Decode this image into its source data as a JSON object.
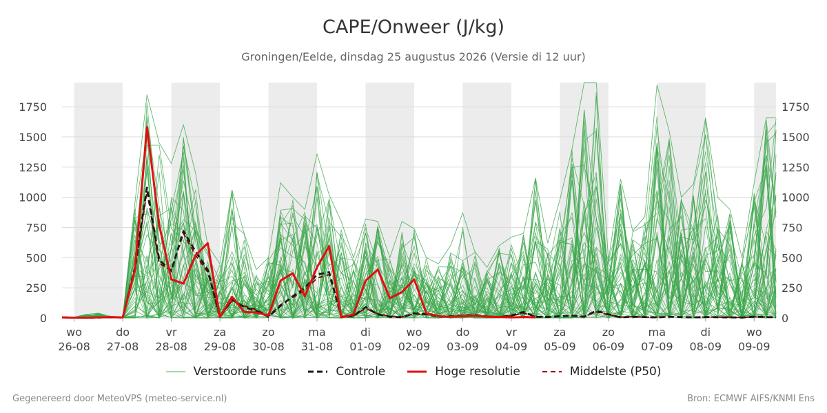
{
  "header": {
    "title": "CAPE/Onweer (J/kg)",
    "subtitle": "Groningen/Eelde, dinsdag 25 augustus 2026 (Versie di 12 uur)"
  },
  "footer": {
    "left": "Gegenereerd door MeteoVPS (meteo-service.nl)",
    "right": "Bron: ECMWF AIFS/KNMI Ens"
  },
  "legend": [
    {
      "label": "Verstoorde runs",
      "color": "#4caf50",
      "style": "thin-solid"
    },
    {
      "label": "Controle",
      "color": "#1a1a1a",
      "style": "dashed"
    },
    {
      "label": "Hoge resolutie",
      "color": "#e01010",
      "style": "thick-solid"
    },
    {
      "label": "Middelste (P50)",
      "color": "#8b0000",
      "style": "dashed"
    }
  ],
  "chart_data": {
    "type": "line",
    "title": "CAPE/Onweer (J/kg)",
    "subtitle": "Groningen/Eelde, dinsdag 25 augustus 2026 (Versie di 12 uur)",
    "x_unit": "days since 26-08 00:00",
    "xlim": [
      -0.25,
      14.45
    ],
    "ylim": [
      0,
      1950
    ],
    "y_ticks": [
      0,
      250,
      500,
      750,
      1000,
      1250,
      1500,
      1750
    ],
    "grid": true,
    "legend_position": "bottom",
    "x_tick_labels": [
      {
        "day": "wo",
        "date": "26-08",
        "x": 0
      },
      {
        "day": "do",
        "date": "27-08",
        "x": 1
      },
      {
        "day": "vr",
        "date": "28-08",
        "x": 2
      },
      {
        "day": "za",
        "date": "29-08",
        "x": 3
      },
      {
        "day": "zo",
        "date": "30-08",
        "x": 4
      },
      {
        "day": "ma",
        "date": "31-08",
        "x": 5
      },
      {
        "day": "di",
        "date": "01-09",
        "x": 6
      },
      {
        "day": "wo",
        "date": "02-09",
        "x": 7
      },
      {
        "day": "do",
        "date": "03-09",
        "x": 8
      },
      {
        "day": "vr",
        "date": "04-09",
        "x": 9
      },
      {
        "day": "za",
        "date": "05-09",
        "x": 10
      },
      {
        "day": "zo",
        "date": "06-09",
        "x": 11
      },
      {
        "day": "ma",
        "date": "07-09",
        "x": 12
      },
      {
        "day": "di",
        "date": "08-09",
        "x": 13
      },
      {
        "day": "wo",
        "date": "09-09",
        "x": 14
      }
    ],
    "shaded_bands": [
      [
        0,
        1
      ],
      [
        2,
        3
      ],
      [
        4,
        5
      ],
      [
        6,
        7
      ],
      [
        8,
        9
      ],
      [
        10,
        11
      ],
      [
        12,
        13
      ],
      [
        14,
        14.45
      ]
    ],
    "series": [
      {
        "name": "Hoge resolutie",
        "color": "#e01010",
        "x": [
          -0.25,
          0,
          0.25,
          0.5,
          0.75,
          1,
          1.25,
          1.5,
          1.75,
          2,
          2.25,
          2.5,
          2.75,
          3,
          3.25,
          3.5,
          3.75,
          4,
          4.25,
          4.5,
          4.75,
          5,
          5.25,
          5.5,
          5.75,
          6,
          6.25,
          6.5,
          6.75,
          7,
          7.25,
          7.5,
          7.75,
          8,
          8.25,
          8.5,
          8.75,
          9,
          9.25,
          9.5
        ],
        "y": [
          5,
          3,
          2,
          5,
          8,
          4,
          400,
          1580,
          770,
          320,
          285,
          520,
          620,
          8,
          175,
          50,
          45,
          20,
          310,
          370,
          180,
          420,
          595,
          5,
          30,
          310,
          400,
          165,
          215,
          320,
          40,
          15,
          10,
          15,
          20,
          10,
          8,
          5,
          8,
          5
        ]
      },
      {
        "name": "Controle",
        "color": "#1a1a1a",
        "x": [
          -0.25,
          0,
          0.25,
          0.5,
          0.75,
          1,
          1.25,
          1.5,
          1.75,
          2,
          2.25,
          2.5,
          2.75,
          3,
          3.25,
          3.5,
          3.75,
          4,
          4.25,
          4.5,
          4.75,
          5,
          5.25,
          5.5,
          5.75,
          6,
          6.25,
          6.5,
          6.75,
          7,
          7.25,
          7.5,
          7.75,
          8,
          8.25,
          8.5,
          8.75,
          9,
          9.25,
          9.5,
          9.75,
          10,
          10.25,
          10.5,
          10.75,
          11,
          11.25,
          11.5,
          11.75,
          12,
          12.25,
          12.5,
          12.75,
          13,
          13.25,
          13.5,
          13.75,
          14,
          14.25,
          14.45
        ],
        "y": [
          5,
          3,
          2,
          4,
          6,
          4,
          420,
          1080,
          480,
          390,
          720,
          550,
          400,
          10,
          150,
          90,
          60,
          10,
          100,
          180,
          250,
          360,
          380,
          10,
          15,
          90,
          30,
          10,
          5,
          40,
          30,
          10,
          15,
          20,
          25,
          12,
          8,
          20,
          50,
          10,
          8,
          15,
          20,
          10,
          60,
          30,
          5,
          10,
          8,
          5,
          10,
          8,
          5,
          8,
          6,
          5,
          4,
          10,
          8,
          5
        ]
      },
      {
        "name": "Middelste (P50)",
        "color": "#8b0000",
        "x": [
          -0.25,
          0,
          0.25,
          0.5,
          0.75,
          1,
          1.25,
          1.5,
          1.75,
          2,
          2.25,
          2.5,
          2.75,
          3,
          3.25,
          3.5,
          3.75,
          4,
          4.25,
          4.5,
          4.75,
          5,
          5.25,
          5.5,
          5.75,
          6,
          6.25,
          6.5,
          6.75,
          7,
          7.25,
          7.5,
          7.75,
          8,
          8.25,
          8.5,
          8.75,
          9,
          9.25,
          9.5,
          9.75,
          10,
          10.25,
          10.5,
          10.75,
          11,
          11.25,
          11.5,
          11.75,
          12,
          12.25,
          12.5,
          12.75,
          13,
          13.25,
          13.5,
          13.75,
          14,
          14.25,
          14.45
        ],
        "y": [
          4,
          3,
          2,
          4,
          5,
          4,
          380,
          1050,
          450,
          400,
          700,
          520,
          380,
          15,
          140,
          100,
          70,
          15,
          110,
          170,
          230,
          330,
          360,
          15,
          20,
          80,
          35,
          15,
          10,
          35,
          30,
          12,
          15,
          18,
          22,
          14,
          10,
          18,
          40,
          12,
          10,
          14,
          18,
          12,
          50,
          28,
          8,
          10,
          8,
          6,
          10,
          8,
          6,
          8,
          7,
          6,
          5,
          10,
          8,
          6
        ]
      }
    ],
    "ensemble": {
      "name": "Verstoorde runs",
      "color": "#3aa64a",
      "member_count": 50,
      "x": [
        -0.25,
        0,
        0.25,
        0.5,
        0.75,
        1,
        1.25,
        1.5,
        1.75,
        2,
        2.25,
        2.5,
        2.75,
        3,
        3.25,
        3.5,
        3.75,
        4,
        4.25,
        4.5,
        4.75,
        5,
        5.25,
        5.5,
        5.75,
        6,
        6.25,
        6.5,
        6.75,
        7,
        7.25,
        7.5,
        7.75,
        8,
        8.25,
        8.5,
        8.75,
        9,
        9.25,
        9.5,
        9.75,
        10,
        10.25,
        10.5,
        10.75,
        11,
        11.25,
        11.5,
        11.75,
        12,
        12.25,
        12.5,
        12.75,
        13,
        13.25,
        13.5,
        13.75,
        14,
        14.25,
        14.45
      ],
      "envelope_max": [
        10,
        8,
        30,
        40,
        15,
        10,
        950,
        1850,
        1450,
        1280,
        1600,
        1200,
        600,
        450,
        1060,
        700,
        400,
        500,
        1120,
        1000,
        900,
        1360,
        1020,
        800,
        500,
        820,
        800,
        500,
        800,
        740,
        500,
        450,
        600,
        870,
        550,
        420,
        600,
        670,
        700,
        1160,
        620,
        980,
        1400,
        1950,
        1950,
        480,
        1150,
        720,
        840,
        1930,
        1550,
        1000,
        1110,
        1660,
        1000,
        900,
        500,
        1120,
        1660,
        1660
      ]
    }
  }
}
